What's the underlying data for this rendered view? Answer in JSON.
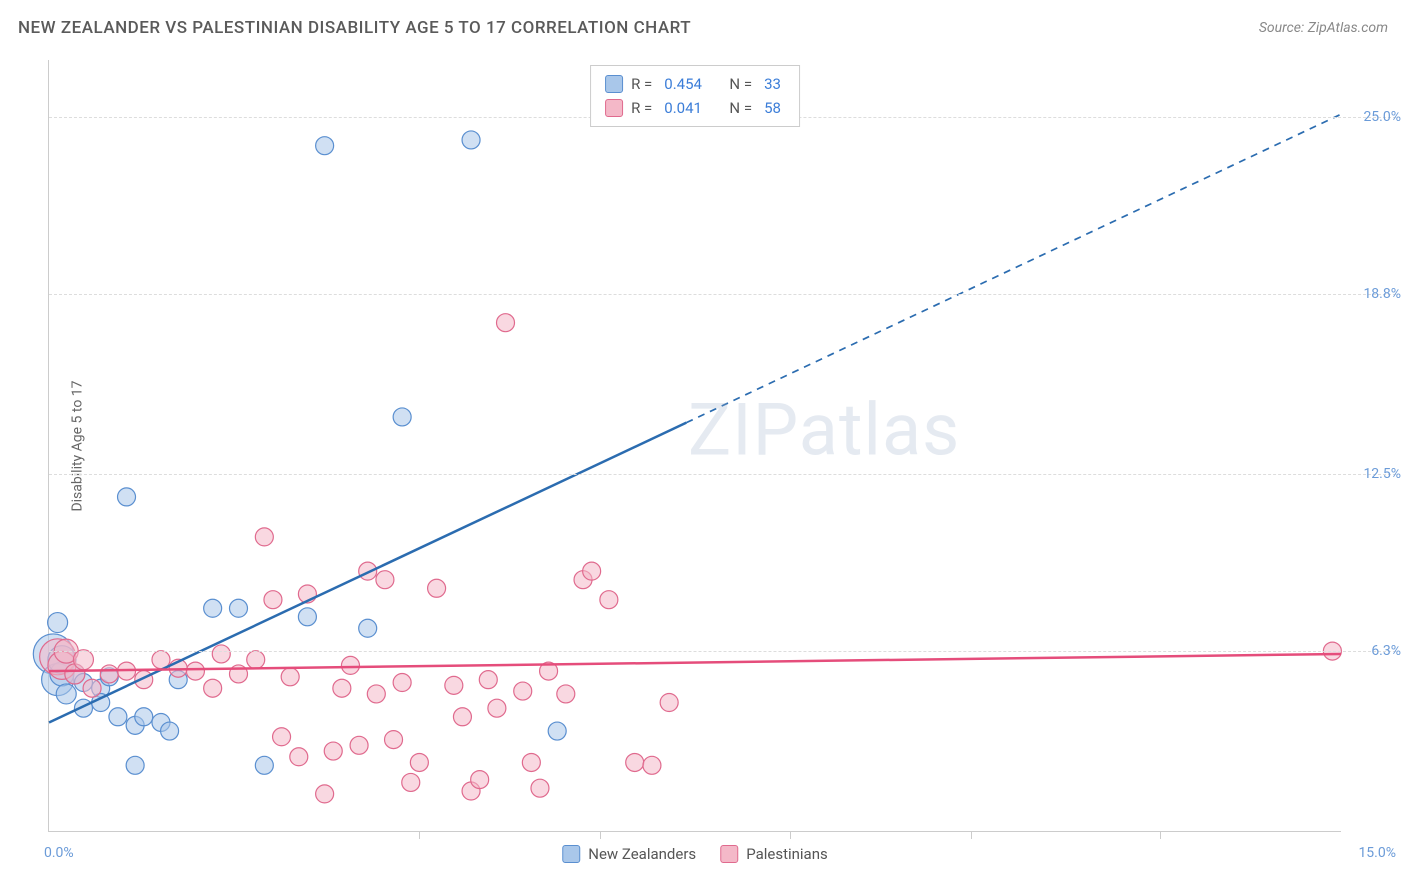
{
  "header": {
    "title": "NEW ZEALANDER VS PALESTINIAN DISABILITY AGE 5 TO 17 CORRELATION CHART",
    "source": "Source: ZipAtlas.com"
  },
  "chart": {
    "type": "scatter",
    "ylabel": "Disability Age 5 to 17",
    "xlim": [
      0,
      15
    ],
    "ylim": [
      0,
      27
    ],
    "xtick_labels": {
      "left": "0.0%",
      "right": "15.0%"
    },
    "xtick_positions": [
      4.3,
      6.4,
      8.6,
      10.7,
      12.9
    ],
    "ytick_labels": [
      "6.3%",
      "12.5%",
      "18.8%",
      "25.0%"
    ],
    "ytick_positions": [
      6.3,
      12.5,
      18.8,
      25.0
    ],
    "grid_color": "#dddddd",
    "axis_color": "#cccccc",
    "background_color": "#ffffff",
    "watermark": "ZIPatlas",
    "marker_radius": 9,
    "marker_stroke_width": 1.2,
    "series": [
      {
        "name": "New Zealanders",
        "fill": "#a9c7ea",
        "stroke": "#5a8fd0",
        "fill_opacity": 0.55,
        "r_value": "0.454",
        "n_value": "33",
        "trend": {
          "color": "#2b6cb0",
          "width": 2.5,
          "solid_from": [
            0,
            3.8
          ],
          "solid_to": [
            7.4,
            14.3
          ],
          "dash_from": [
            7.4,
            14.3
          ],
          "dash_to": [
            15,
            25.1
          ]
        },
        "points": [
          [
            0.05,
            6.2,
            20
          ],
          [
            0.1,
            5.3,
            16
          ],
          [
            0.15,
            5.5,
            12
          ],
          [
            0.2,
            4.8,
            10
          ],
          [
            0.15,
            6.0,
            14
          ],
          [
            0.1,
            7.3,
            10
          ],
          [
            0.3,
            5.5,
            10
          ],
          [
            0.4,
            5.2,
            9
          ],
          [
            0.4,
            4.3,
            9
          ],
          [
            0.6,
            5.0,
            9
          ],
          [
            0.6,
            4.5,
            9
          ],
          [
            0.7,
            5.4,
            9
          ],
          [
            0.8,
            4.0,
            9
          ],
          [
            0.9,
            11.7,
            9
          ],
          [
            1.0,
            3.7,
            9
          ],
          [
            1.0,
            2.3,
            9
          ],
          [
            1.1,
            4.0,
            9
          ],
          [
            1.3,
            3.8,
            9
          ],
          [
            1.4,
            3.5,
            9
          ],
          [
            1.5,
            5.3,
            9
          ],
          [
            1.9,
            7.8,
            9
          ],
          [
            2.2,
            7.8,
            9
          ],
          [
            2.5,
            2.3,
            9
          ],
          [
            3.0,
            7.5,
            9
          ],
          [
            3.2,
            24.0,
            9
          ],
          [
            3.7,
            7.1,
            9
          ],
          [
            4.1,
            14.5,
            9
          ],
          [
            4.9,
            24.2,
            9
          ],
          [
            5.9,
            3.5,
            9
          ]
        ]
      },
      {
        "name": "Palestinians",
        "fill": "#f4b8c8",
        "stroke": "#e06a8e",
        "fill_opacity": 0.55,
        "r_value": "0.041",
        "n_value": "58",
        "trend": {
          "color": "#e54d7b",
          "width": 2.5,
          "solid_from": [
            0,
            5.6
          ],
          "solid_to": [
            15,
            6.2
          ]
        },
        "points": [
          [
            0.1,
            6.1,
            18
          ],
          [
            0.15,
            5.8,
            14
          ],
          [
            0.2,
            6.3,
            12
          ],
          [
            0.3,
            5.5,
            10
          ],
          [
            0.4,
            6.0,
            10
          ],
          [
            0.5,
            5.0,
            9
          ],
          [
            0.7,
            5.5,
            9
          ],
          [
            0.9,
            5.6,
            9
          ],
          [
            1.1,
            5.3,
            9
          ],
          [
            1.3,
            6.0,
            9
          ],
          [
            1.5,
            5.7,
            9
          ],
          [
            1.7,
            5.6,
            9
          ],
          [
            1.9,
            5.0,
            9
          ],
          [
            2.0,
            6.2,
            9
          ],
          [
            2.2,
            5.5,
            9
          ],
          [
            2.4,
            6.0,
            9
          ],
          [
            2.5,
            10.3,
            9
          ],
          [
            2.6,
            8.1,
            9
          ],
          [
            2.7,
            3.3,
            9
          ],
          [
            2.8,
            5.4,
            9
          ],
          [
            2.9,
            2.6,
            9
          ],
          [
            3.0,
            8.3,
            9
          ],
          [
            3.2,
            1.3,
            9
          ],
          [
            3.3,
            2.8,
            9
          ],
          [
            3.4,
            5.0,
            9
          ],
          [
            3.5,
            5.8,
            9
          ],
          [
            3.6,
            3.0,
            9
          ],
          [
            3.7,
            9.1,
            9
          ],
          [
            3.8,
            4.8,
            9
          ],
          [
            3.9,
            8.8,
            9
          ],
          [
            4.0,
            3.2,
            9
          ],
          [
            4.1,
            5.2,
            9
          ],
          [
            4.2,
            1.7,
            9
          ],
          [
            4.3,
            2.4,
            9
          ],
          [
            4.5,
            8.5,
            9
          ],
          [
            4.7,
            5.1,
            9
          ],
          [
            4.8,
            4.0,
            9
          ],
          [
            4.9,
            1.4,
            9
          ],
          [
            5.0,
            1.8,
            9
          ],
          [
            5.1,
            5.3,
            9
          ],
          [
            5.2,
            4.3,
            9
          ],
          [
            5.3,
            17.8,
            9
          ],
          [
            5.5,
            4.9,
            9
          ],
          [
            5.6,
            2.4,
            9
          ],
          [
            5.7,
            1.5,
            9
          ],
          [
            5.8,
            5.6,
            9
          ],
          [
            6.0,
            4.8,
            9
          ],
          [
            6.2,
            8.8,
            9
          ],
          [
            6.3,
            9.1,
            9
          ],
          [
            6.5,
            8.1,
            9
          ],
          [
            6.8,
            2.4,
            9
          ],
          [
            7.0,
            2.3,
            9
          ],
          [
            7.2,
            4.5,
            9
          ],
          [
            14.9,
            6.3,
            9
          ]
        ]
      }
    ]
  },
  "legend_bottom": [
    {
      "label": "New Zealanders",
      "fill": "#a9c7ea",
      "stroke": "#5a8fd0"
    },
    {
      "label": "Palestinians",
      "fill": "#f4b8c8",
      "stroke": "#e06a8e"
    }
  ]
}
